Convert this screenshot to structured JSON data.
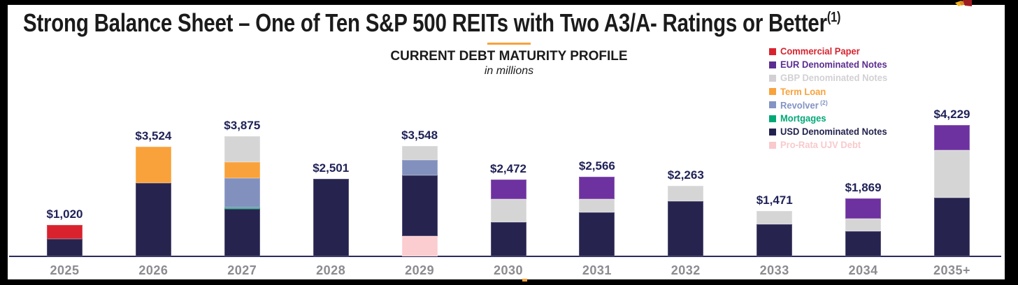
{
  "slide": {
    "title": "Strong Balance Sheet – One of Ten S&P 500 REITs with Two A3/A- Ratings or Better",
    "title_footnote": "(1)"
  },
  "chart": {
    "title": "CURRENT DEBT MATURITY PROFILE",
    "subtitle": "in millions"
  },
  "legend": {
    "items": [
      {
        "label": "Commercial Paper",
        "superscript": "",
        "color": "#d8232e"
      },
      {
        "label": "EUR Denominated Notes",
        "superscript": "",
        "color": "#5c2d91"
      },
      {
        "label": "GBP Denominated Notes",
        "superscript": "",
        "color": "#d2d0d3"
      },
      {
        "label": "Term Loan",
        "superscript": "",
        "color": "#f9a23c"
      },
      {
        "label": "Revolver",
        "superscript": "(2)",
        "color": "#8393c4"
      },
      {
        "label": "Mortgages",
        "superscript": "",
        "color": "#00a876"
      },
      {
        "label": "USD Denominated Notes",
        "superscript": "",
        "color": "#23224e"
      },
      {
        "label": "Pro-Rata UJV Debt",
        "superscript": "",
        "color": "#f9c9cb"
      }
    ]
  },
  "chart_data": {
    "type": "bar",
    "stacked": true,
    "title": "CURRENT DEBT MATURITY PROFILE",
    "subtitle": "in millions",
    "unit": "USD millions",
    "grid": false,
    "legend_position": "upper-right",
    "ylim": [
      0,
      4400
    ],
    "categories": [
      "2025",
      "2026",
      "2027",
      "2028",
      "2029",
      "2030",
      "2031",
      "2032",
      "2033",
      "2034",
      "2035+"
    ],
    "totals": [
      1020,
      3524,
      3875,
      2501,
      3548,
      2472,
      2566,
      2263,
      1471,
      1869,
      4229
    ],
    "total_labels": [
      "$1,020",
      "$3,524",
      "$3,875",
      "$2,501",
      "$3,548",
      "$2,472",
      "$2,566",
      "$2,263",
      "$1,471",
      "$1,869",
      "$4,229"
    ],
    "series": [
      {
        "name": "Pro-Rata UJV Debt",
        "color": "#fbcdd0",
        "values": [
          0,
          0,
          0,
          0,
          650,
          0,
          0,
          0,
          0,
          0,
          0
        ]
      },
      {
        "name": "USD Denominated Notes",
        "color": "#26234f",
        "values": [
          555,
          2364,
          1520,
          2501,
          1950,
          1105,
          1421,
          1779,
          1034,
          803,
          1898
        ]
      },
      {
        "name": "Mortgages",
        "color": "#0ba57c",
        "values": [
          0,
          0,
          55,
          0,
          0,
          0,
          0,
          0,
          0,
          0,
          0
        ]
      },
      {
        "name": "Revolver",
        "color": "#8290be",
        "values": [
          0,
          0,
          945,
          0,
          495,
          0,
          0,
          0,
          0,
          0,
          0
        ]
      },
      {
        "name": "Term Loan",
        "color": "#f9a23b",
        "values": [
          0,
          1160,
          510,
          0,
          0,
          0,
          0,
          0,
          0,
          0,
          0
        ]
      },
      {
        "name": "GBP Denominated Notes",
        "color": "#d6d5d6",
        "values": [
          0,
          0,
          845,
          0,
          453,
          736,
          422,
          484,
          437,
          413,
          1523
        ]
      },
      {
        "name": "EUR Denominated Notes",
        "color": "#6e31a0",
        "values": [
          0,
          0,
          0,
          0,
          0,
          631,
          723,
          0,
          0,
          653,
          808
        ]
      },
      {
        "name": "Commercial Paper",
        "color": "#d8222e",
        "values": [
          465,
          0,
          0,
          0,
          0,
          0,
          0,
          0,
          0,
          0,
          0
        ]
      }
    ]
  }
}
